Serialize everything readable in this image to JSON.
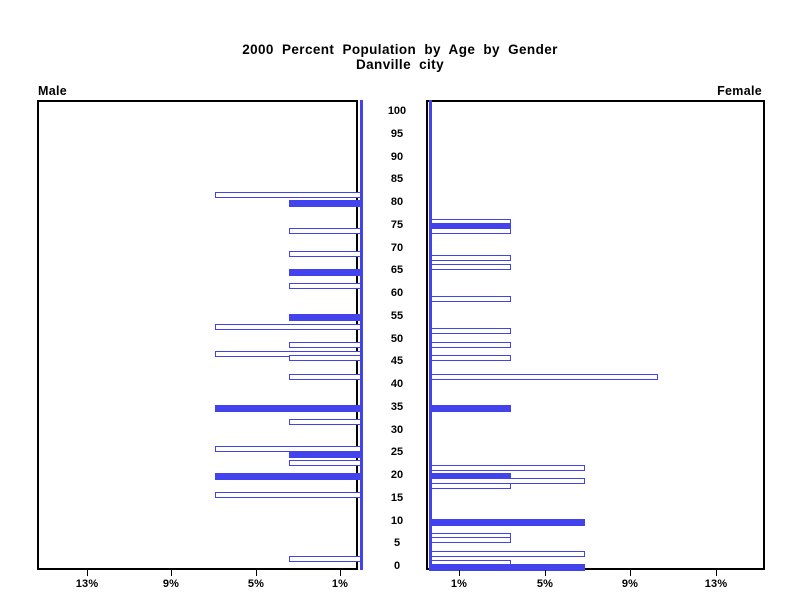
{
  "chart_data": {
    "type": "bar",
    "variant": "population-pyramid",
    "title": "2000 Percent Population by Age by Gender",
    "subtitle": "Danville city",
    "legend_position": "panel-corner-labels",
    "grid": false,
    "age_axis": {
      "min": 0,
      "max": 100,
      "tick_interval": 5,
      "tick_labels": [
        "100",
        "95",
        "90",
        "85",
        "80",
        "75",
        "70",
        "65",
        "60",
        "55",
        "50",
        "45",
        "40",
        "35",
        "30",
        "25",
        "20",
        "15",
        "10",
        "5",
        "0"
      ]
    },
    "left_pct_axis": {
      "tick_labels": [
        "13%",
        "9%",
        "5%",
        "1%"
      ],
      "tick_values": [
        13,
        9,
        5,
        1
      ],
      "range_pct": [
        0,
        15
      ],
      "direction": "increases-leftward"
    },
    "right_pct_axis": {
      "tick_labels": [
        "1%",
        "5%",
        "9%",
        "13%"
      ],
      "tick_values": [
        1,
        5,
        9,
        13
      ],
      "range_pct": [
        0,
        15
      ],
      "direction": "increases-rightward"
    },
    "series": [
      {
        "name": "Male",
        "side": "left",
        "bars": [
          {
            "age": 82,
            "percent": 6.9,
            "filled": false
          },
          {
            "age": 80,
            "percent": 3.4,
            "filled": true
          },
          {
            "age": 74,
            "percent": 3.4,
            "filled": false
          },
          {
            "age": 69,
            "percent": 3.4,
            "filled": false
          },
          {
            "age": 65,
            "percent": 3.4,
            "filled": true
          },
          {
            "age": 62,
            "percent": 3.4,
            "filled": false
          },
          {
            "age": 55,
            "percent": 3.4,
            "filled": true
          },
          {
            "age": 53,
            "percent": 6.9,
            "filled": false
          },
          {
            "age": 49,
            "percent": 3.4,
            "filled": false
          },
          {
            "age": 47,
            "percent": 6.9,
            "filled": false
          },
          {
            "age": 46,
            "percent": 3.4,
            "filled": false
          },
          {
            "age": 42,
            "percent": 3.4,
            "filled": false
          },
          {
            "age": 35,
            "percent": 6.9,
            "filled": true
          },
          {
            "age": 32,
            "percent": 3.4,
            "filled": false
          },
          {
            "age": 26,
            "percent": 6.9,
            "filled": false
          },
          {
            "age": 25,
            "percent": 3.4,
            "filled": true
          },
          {
            "age": 23,
            "percent": 3.4,
            "filled": false
          },
          {
            "age": 20,
            "percent": 6.9,
            "filled": true
          },
          {
            "age": 16,
            "percent": 6.9,
            "filled": false
          },
          {
            "age": 2,
            "percent": 3.4,
            "filled": false
          }
        ]
      },
      {
        "name": "Female",
        "side": "right",
        "bars": [
          {
            "age": 76,
            "percent": 3.4,
            "filled": false
          },
          {
            "age": 75,
            "percent": 3.4,
            "filled": true
          },
          {
            "age": 74,
            "percent": 3.4,
            "filled": false
          },
          {
            "age": 68,
            "percent": 3.4,
            "filled": false
          },
          {
            "age": 66,
            "percent": 3.4,
            "filled": false
          },
          {
            "age": 59,
            "percent": 3.4,
            "filled": false
          },
          {
            "age": 52,
            "percent": 3.4,
            "filled": false
          },
          {
            "age": 49,
            "percent": 3.4,
            "filled": false
          },
          {
            "age": 46,
            "percent": 3.4,
            "filled": false
          },
          {
            "age": 42,
            "percent": 10.3,
            "filled": false
          },
          {
            "age": 35,
            "percent": 3.4,
            "filled": true
          },
          {
            "age": 22,
            "percent": 6.9,
            "filled": false
          },
          {
            "age": 20,
            "percent": 3.4,
            "filled": true
          },
          {
            "age": 19,
            "percent": 6.9,
            "filled": false
          },
          {
            "age": 18,
            "percent": 3.4,
            "filled": false
          },
          {
            "age": 10,
            "percent": 6.9,
            "filled": true
          },
          {
            "age": 7,
            "percent": 3.4,
            "filled": false
          },
          {
            "age": 6,
            "percent": 3.4,
            "filled": false
          },
          {
            "age": 3,
            "percent": 6.9,
            "filled": false
          },
          {
            "age": 1,
            "percent": 3.4,
            "filled": false
          },
          {
            "age": 0,
            "percent": 6.9,
            "filled": true
          }
        ]
      }
    ],
    "colors": {
      "bar_blue": "#4343ee",
      "frame": "#000000",
      "text": "#000000",
      "background": "#ffffff"
    }
  }
}
